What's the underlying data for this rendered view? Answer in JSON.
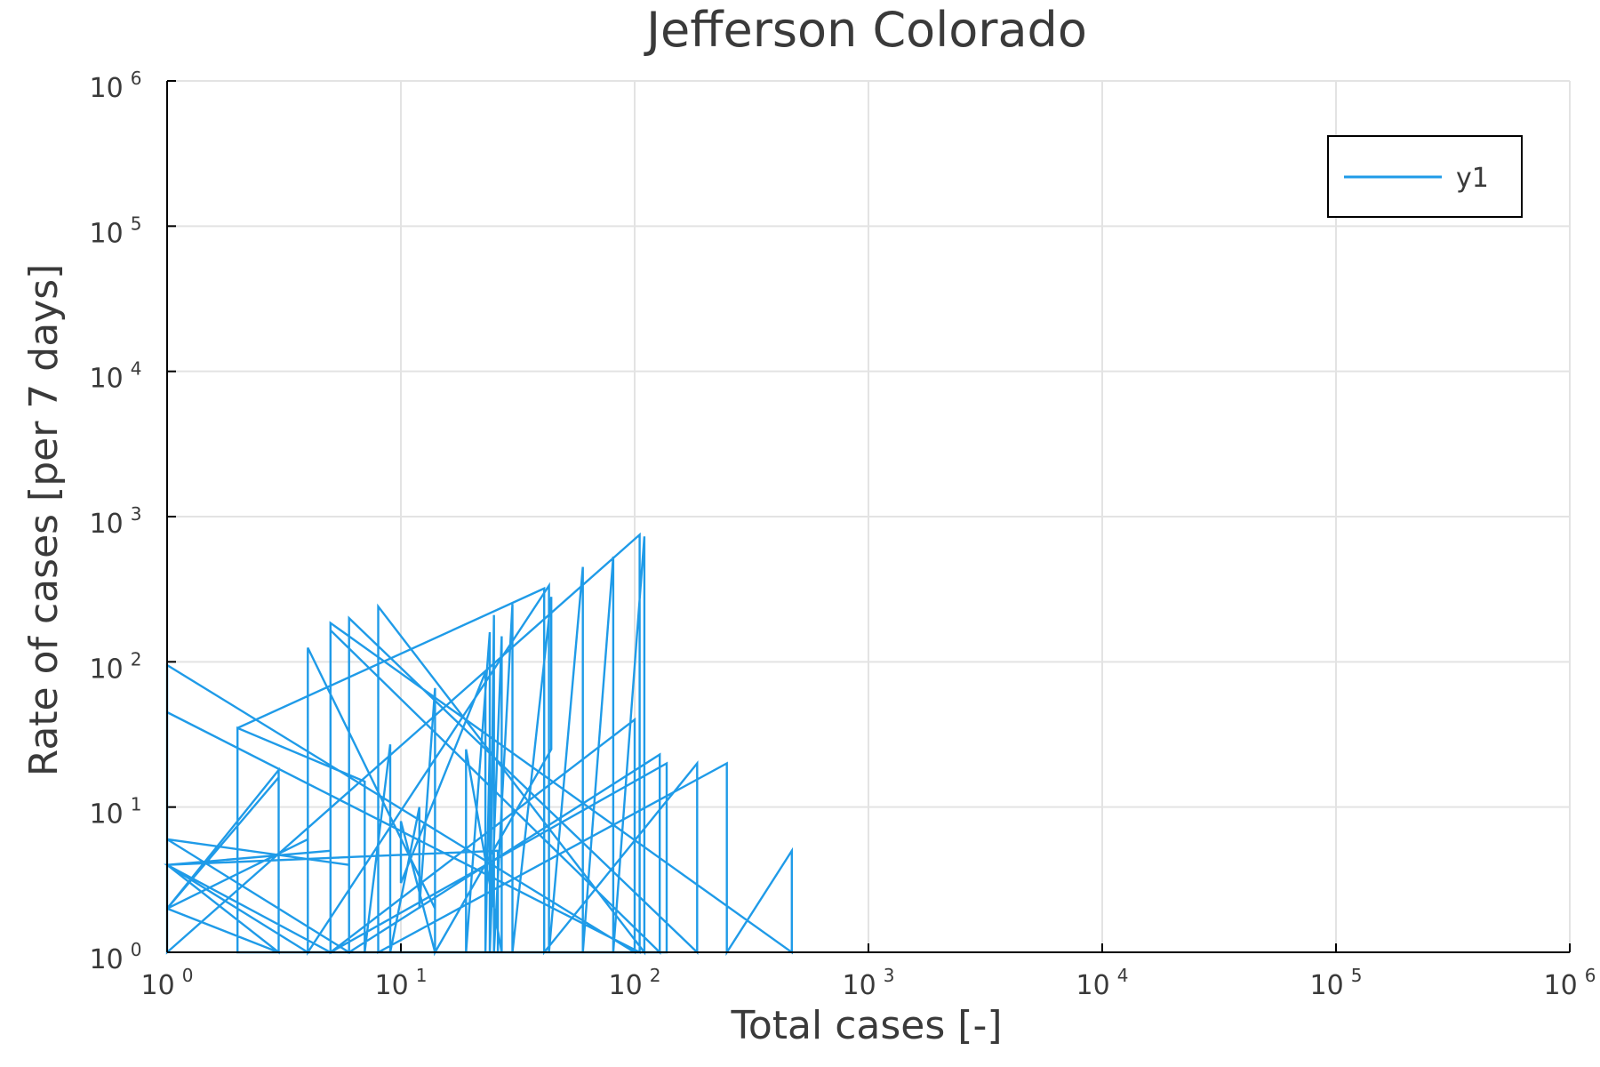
{
  "chart_data": {
    "type": "line",
    "title": "Jefferson Colorado",
    "xlabel": "Total cases [-]",
    "ylabel": "Rate of cases [per 7 days]",
    "xscale": "log",
    "yscale": "log",
    "xlim": [
      1,
      1000000
    ],
    "ylim": [
      1,
      1000000
    ],
    "xticks": [
      {
        "value": 1,
        "base": "10",
        "exp": "0"
      },
      {
        "value": 10,
        "base": "10",
        "exp": "1"
      },
      {
        "value": 100,
        "base": "10",
        "exp": "2"
      },
      {
        "value": 1000,
        "base": "10",
        "exp": "3"
      },
      {
        "value": 10000,
        "base": "10",
        "exp": "4"
      },
      {
        "value": 100000,
        "base": "10",
        "exp": "5"
      },
      {
        "value": 1000000,
        "base": "10",
        "exp": "6"
      }
    ],
    "yticks": [
      {
        "value": 1,
        "base": "10",
        "exp": "0"
      },
      {
        "value": 10,
        "base": "10",
        "exp": "1"
      },
      {
        "value": 100,
        "base": "10",
        "exp": "2"
      },
      {
        "value": 1000,
        "base": "10",
        "exp": "3"
      },
      {
        "value": 10000,
        "base": "10",
        "exp": "4"
      },
      {
        "value": 100000,
        "base": "10",
        "exp": "5"
      },
      {
        "value": 1000000,
        "base": "10",
        "exp": "6"
      }
    ],
    "grid": true,
    "legend_position": "top-right",
    "color": "#1f9be8",
    "series": [
      {
        "name": "y1",
        "x": [
          1,
          1,
          3,
          3,
          1,
          1,
          6,
          6,
          1,
          1,
          3,
          3,
          1,
          1,
          5,
          5,
          1,
          1,
          4,
          4,
          1,
          1,
          26,
          26,
          2,
          2,
          7,
          7,
          9,
          9,
          12,
          12,
          14,
          14,
          10,
          10,
          23,
          23,
          24,
          24,
          27,
          27,
          19,
          19,
          24,
          24,
          25,
          25,
          30,
          30,
          44,
          44,
          14,
          14,
          4,
          4,
          43,
          43,
          60,
          60,
          81,
          81,
          110,
          110,
          8,
          8,
          248,
          248,
          470,
          470,
          5,
          5,
          137,
          137,
          2,
          2,
          41,
          41,
          185,
          185,
          6,
          6,
          128,
          128,
          5,
          5,
          100,
          100,
          1,
          1,
          105,
          105,
          1
        ],
        "y": [
          1,
          2,
          18,
          1,
          4,
          6,
          1,
          4,
          6,
          2,
          16,
          1,
          2,
          4,
          5,
          1,
          4,
          2,
          6,
          1,
          4,
          4,
          5,
          1,
          1,
          35,
          15,
          1,
          27,
          1,
          10,
          2,
          66,
          1,
          8,
          3,
          85,
          1,
          28,
          1,
          150,
          1,
          25,
          1,
          160,
          1,
          210,
          1,
          250,
          1,
          280,
          25,
          1,
          2,
          125,
          1,
          335,
          1,
          450,
          1,
          530,
          1,
          730,
          1,
          240,
          1,
          20,
          1,
          5,
          1,
          185,
          1,
          20,
          1,
          1,
          35,
          320,
          1,
          20,
          1,
          200,
          1,
          23,
          1,
          165,
          1,
          40,
          1,
          95,
          1,
          750,
          1,
          45
        ]
      }
    ]
  }
}
